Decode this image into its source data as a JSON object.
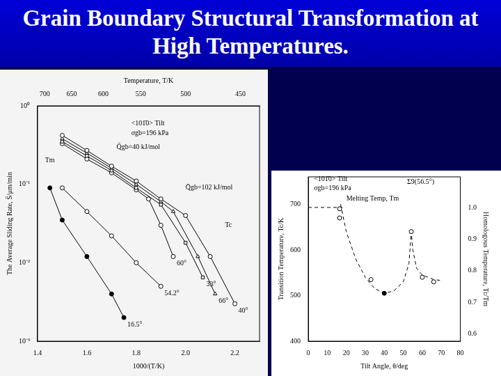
{
  "title": "Grain Boundary Structural Transformation at High Temperatures.",
  "chart_data": [
    {
      "type": "line",
      "x_label": "1000/(T/K)",
      "y_label": "The Average Sliding Rate, S̄/μm/min",
      "top_axis": {
        "label": "Temperature, T/K",
        "ticks": [
          700,
          650,
          600,
          550,
          500,
          450
        ]
      },
      "xlim": [
        1.4,
        2.3
      ],
      "xticks": [
        1.4,
        1.6,
        1.8,
        {
          "value": 2,
          "label": "2.0"
        },
        2.2
      ],
      "log": "y",
      "ylim": [
        0.001,
        1
      ],
      "yticks": [
        {
          "value": 0.001,
          "label": "10⁻³"
        },
        {
          "value": 0.01,
          "label": "10⁻²"
        },
        {
          "value": 0.1,
          "label": "10⁻¹"
        },
        {
          "value": 1,
          "label": "10⁰"
        }
      ],
      "grid": false,
      "series": [
        {
          "name": "40°",
          "color": "#000000",
          "marker": "circle",
          "line_style": "solid",
          "x": [
            1.5,
            1.6,
            1.7,
            1.8,
            1.9,
            2.0,
            2.1,
            2.2
          ],
          "values": [
            0.42,
            0.27,
            0.17,
            0.11,
            0.065,
            0.04,
            0.012,
            0.003
          ]
        },
        {
          "name": "66°",
          "color": "#000000",
          "marker": "triangle",
          "line_style": "solid",
          "x": [
            1.5,
            1.6,
            1.7,
            1.8,
            1.9,
            1.95,
            2.05,
            2.12
          ],
          "values": [
            0.38,
            0.25,
            0.16,
            0.1,
            0.06,
            0.045,
            0.012,
            0.004
          ]
        },
        {
          "name": "33°",
          "color": "#000000",
          "marker": "square",
          "line_style": "solid",
          "x": [
            1.5,
            1.6,
            1.7,
            1.8,
            1.9,
            2.0,
            2.07
          ],
          "values": [
            0.35,
            0.23,
            0.15,
            0.09,
            0.055,
            0.018,
            0.0065
          ]
        },
        {
          "name": "60°",
          "color": "#000000",
          "marker": "circle",
          "line_style": "solid",
          "x": [
            1.5,
            1.6,
            1.7,
            1.8,
            1.85,
            1.9,
            1.95
          ],
          "values": [
            0.33,
            0.21,
            0.14,
            0.085,
            0.065,
            0.03,
            0.012
          ]
        },
        {
          "name": "54.2°",
          "color": "#000000",
          "marker": "circle",
          "line_style": "solid",
          "x": [
            1.5,
            1.6,
            1.7,
            1.8,
            1.9
          ],
          "values": [
            0.09,
            0.045,
            0.022,
            0.01,
            0.005
          ]
        },
        {
          "name": "16.5°",
          "color": "#000000",
          "marker": "filled_circle",
          "line_style": "solid",
          "x": [
            1.45,
            1.5,
            1.6,
            1.7,
            1.75
          ],
          "values": [
            0.09,
            0.035,
            0.012,
            0.004,
            0.002
          ]
        }
      ],
      "annotations": [
        {
          "text": "<101̄0> Tilt",
          "x": 1.78,
          "y": 0.6
        },
        {
          "text": "σgb=196 kPa",
          "x": 1.78,
          "y": 0.45
        },
        {
          "text": "Q̄gb=40 kJ/mol",
          "x": 1.72,
          "y": 0.3
        },
        {
          "text": "Tm",
          "x": 1.43,
          "y": 0.2
        },
        {
          "text": "Tc",
          "x": 2.16,
          "y": 0.03
        },
        {
          "text": "Q̄gb=102 kJ/mol",
          "x": 2.0,
          "y": 0.09
        }
      ]
    },
    {
      "type": "line",
      "x_label": "Tilt Angle, θ/deg",
      "y_label": "Transition Temperature, Tc/K",
      "y2_label": "Homologous Temperature, Tc/Tm",
      "xlim": [
        0,
        80
      ],
      "xticks": [
        0,
        10,
        20,
        30,
        40,
        50,
        60,
        70,
        80
      ],
      "ylim": [
        400,
        760
      ],
      "yticks": [
        400,
        500,
        600,
        700
      ],
      "y2lim": [
        0.5772,
        1.0967
      ],
      "y2ticks": [
        0.6,
        0.7,
        0.8,
        0.9,
        {
          "value": 1,
          "label": "1.0"
        }
      ],
      "grid": false,
      "series": [
        {
          "color": "#000000",
          "marker": "circle",
          "line_style": "none",
          "x": [
            16.5,
            16.5,
            33,
            54.2,
            60,
            66
          ],
          "values": [
            690,
            670,
            535,
            640,
            540,
            530
          ]
        },
        {
          "color": "#000000",
          "marker": "filled_circle",
          "line_style": "none",
          "x": [
            40
          ],
          "values": [
            505
          ]
        },
        {
          "color": "#000000",
          "marker": "none",
          "line_style": "dashed",
          "x": [
            17,
            20,
            25,
            30,
            35,
            40,
            45,
            50,
            53,
            54.2,
            55,
            57,
            60,
            66,
            70
          ],
          "values": [
            700,
            640,
            580,
            540,
            515,
            505,
            510,
            530,
            570,
            640,
            600,
            560,
            545,
            535,
            533
          ]
        },
        {
          "color": "#000000",
          "marker": "none",
          "line_style": "dashed",
          "x": [
            0,
            18
          ],
          "values": [
            693,
            693
          ]
        }
      ],
      "annotations": [
        {
          "text": "<101̄0> Tilt",
          "x": 3,
          "y": 755
        },
        {
          "text": "σgb=196 kPa",
          "x": 3,
          "y": 735
        },
        {
          "text": "Melting Temp, Tm",
          "x": 20,
          "y": 712
        },
        {
          "text": "Σ9(56.5°)",
          "x": 52,
          "y": 748
        }
      ]
    }
  ]
}
